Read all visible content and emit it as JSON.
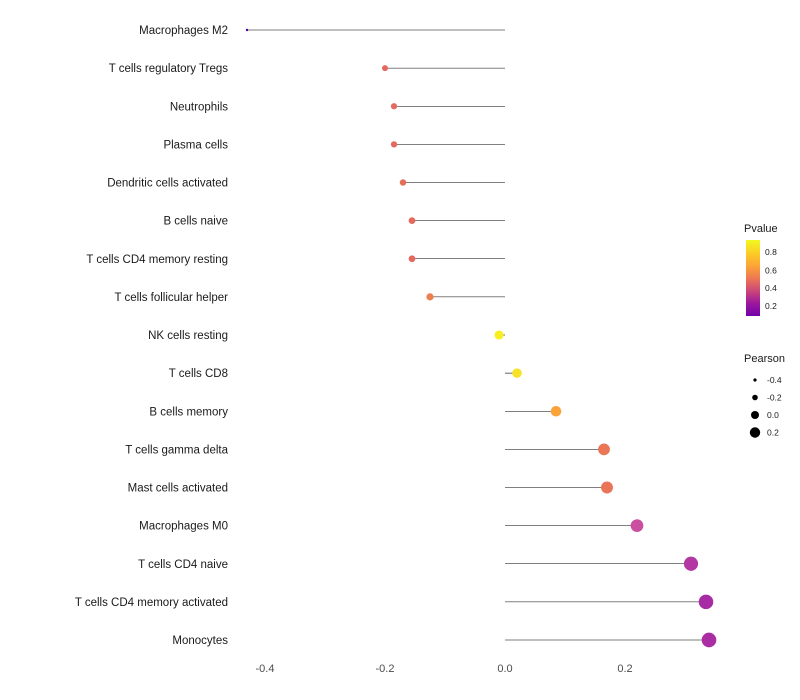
{
  "chart_data": {
    "type": "lollipop",
    "title": "",
    "xlabel": "",
    "ylabel": "",
    "grid": false,
    "legend_position": "right",
    "x_ticks": [
      -0.4,
      -0.2,
      0.0,
      0.2
    ],
    "xlim": [
      -0.52,
      0.39
    ],
    "categories": [
      "Macrophages M2",
      "T cells regulatory  Tregs",
      "Neutrophils",
      "Plasma cells",
      "Dendritic cells activated",
      "B cells naive",
      "T cells CD4 memory resting",
      "T cells follicular helper",
      "NK cells resting",
      "T cells CD8",
      "B cells memory",
      "T cells gamma delta",
      "Mast cells activated",
      "Macrophages M0",
      "T cells CD4 naive",
      "T cells CD4 memory activated",
      "Monocytes"
    ],
    "values": [
      -0.43,
      -0.2,
      -0.185,
      -0.185,
      -0.17,
      -0.155,
      -0.155,
      -0.125,
      -0.01,
      0.02,
      0.085,
      0.165,
      0.17,
      0.22,
      0.31,
      0.335,
      0.34
    ],
    "point_colors": [
      "#41049d",
      "#e5685f",
      "#e4695e",
      "#e4695e",
      "#e76e56",
      "#e4695e",
      "#e5685f",
      "#ef7e4f",
      "#f8ef20",
      "#f6e226",
      "#fba238",
      "#ea7656",
      "#ea7457",
      "#cb4fa0",
      "#b237a2",
      "#a82ba6",
      "#ab2da4"
    ],
    "legend": {
      "color_title": "Pvalue",
      "color_ticks": [
        "0.8",
        "0.6",
        "0.4",
        "0.2"
      ],
      "color_gradient": [
        "#f0f921",
        "#fcce25",
        "#fca636",
        "#ed7953",
        "#cc4778",
        "#9c179e",
        "#7201a8"
      ],
      "size_title": "Pearson",
      "size_ticks": [
        "-0.4",
        "-0.2",
        "0.0",
        "0.2"
      ],
      "size_values": [
        -0.4,
        -0.2,
        0.0,
        0.2
      ]
    }
  },
  "colors": {
    "background": "#ffffff",
    "axis_text": "#4d4d4d",
    "category_text": "#1a1a1a",
    "legend_text": "#1a1a1a",
    "stem": "#000000"
  }
}
